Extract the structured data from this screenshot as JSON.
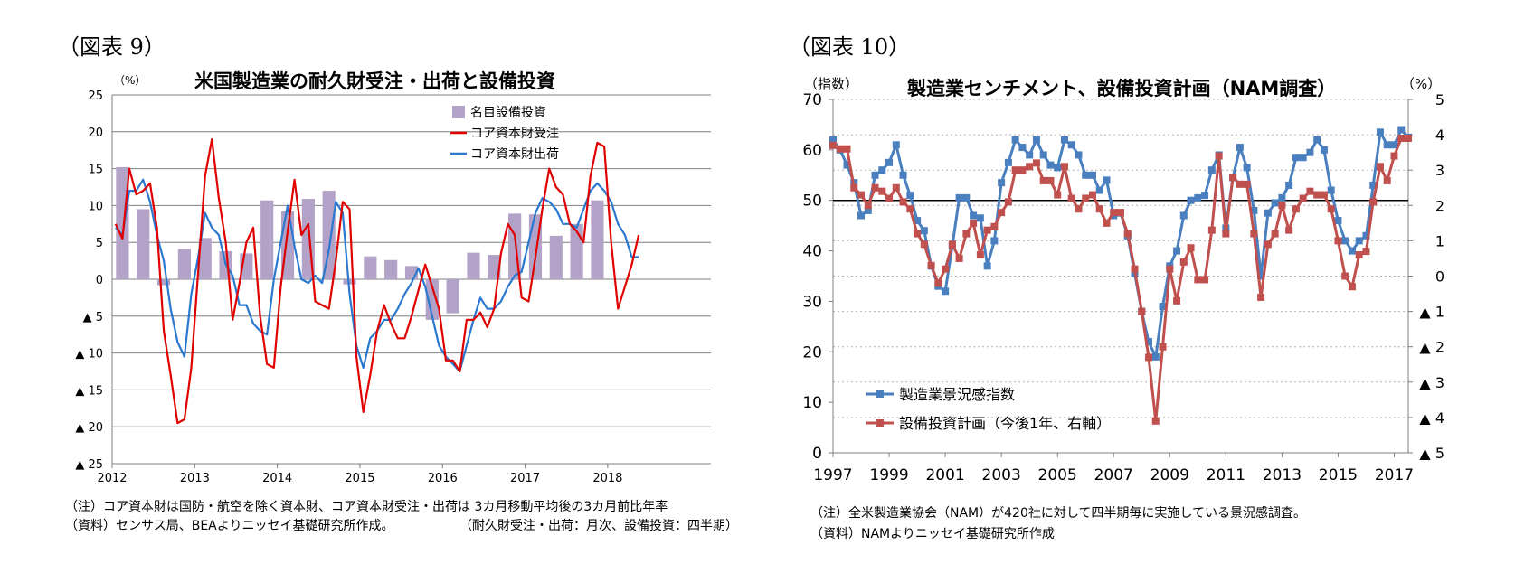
{
  "figure9": {
    "label": "（図表 9）",
    "title": "米国製造業の耐久財受注・出荷と設備投資",
    "note1": "（注）コア資本財は国防・航空を除く資本財、コア資本財受注・出荷は 3カ月移動平均後の3カ月前比年率",
    "note2": "（資料）センサス局、BEAよりニッセイ基礎研究所作成。",
    "note3": "（耐久財受注・出荷：月次、設備投資：四半期）"
  },
  "figure10": {
    "label": "（図表 10）",
    "title": "製造業センチメント、設備投資計画（NAM調査）",
    "note1": "（注）全米製造業協会（NAM）が420社に対して四半期毎に実施している景況感調査。",
    "note2": "（資料）NAMよりニッセイ基礎研究所作成"
  },
  "chart_data": [
    {
      "type": "bar+line",
      "title": "米国製造業の耐久財受注・出荷と設備投資",
      "ylabel": "（%）",
      "ylim": [
        -25,
        25
      ],
      "yticks": [
        25,
        20,
        15,
        10,
        5,
        0,
        -5,
        -10,
        -15,
        -20,
        -25
      ],
      "yticklabels": [
        "25",
        "20",
        "15",
        "10",
        "5",
        "0",
        "▲ 5",
        "▲ 10",
        "▲ 15",
        "▲ 20",
        "▲ 25"
      ],
      "xticklabels": [
        "2012",
        "2013",
        "2014",
        "2015",
        "2016",
        "2017",
        "2018"
      ],
      "x_start": 2012.0,
      "x_end": 2019.25,
      "legend": [
        "名目設備投資",
        "コア資本財受注",
        "コア資本財出荷"
      ],
      "legend_position": "top-right",
      "colors": {
        "bar": "#b3a2c7",
        "orders": "#e00000",
        "shipments": "#2a78d0"
      },
      "quarterly_investment": [
        15.2,
        9.5,
        -0.8,
        4.1,
        5.6,
        3.8,
        3.5,
        10.7,
        9.2,
        10.9,
        12.0,
        -0.7,
        3.1,
        2.6,
        1.8,
        -5.5,
        -4.6,
        3.6,
        3.3,
        8.9,
        8.8,
        5.9,
        7.5,
        10.7
      ],
      "orders_monthly": [
        7.5,
        5.5,
        15.0,
        11.5,
        12.0,
        13.0,
        7.0,
        -7.0,
        -13.0,
        -19.5,
        -19.0,
        -12.0,
        1.0,
        14.0,
        19.0,
        11.0,
        5.0,
        -5.5,
        -0.5,
        5.0,
        7.0,
        -5.0,
        -11.5,
        -12.0,
        -1.0,
        6.5,
        13.5,
        6.0,
        7.5,
        -3.0,
        -3.5,
        -4.0,
        2.5,
        10.5,
        9.5,
        -10.5,
        -18.0,
        -13.0,
        -7.0,
        -3.5,
        -6.0,
        -8.0,
        -8.0,
        -5.0,
        -1.5,
        2.0,
        -1.0,
        -4.0,
        -11.0,
        -11.0,
        -12.5,
        -5.5,
        -5.5,
        -4.5,
        -6.5,
        -4.0,
        3.5,
        7.5,
        6.0,
        -2.5,
        -3.0,
        3.0,
        9.5,
        15.0,
        12.5,
        11.5,
        7.5,
        6.5,
        5.0,
        14.0,
        18.5,
        18.0,
        5.0,
        -4.0,
        -1.0,
        2.0,
        6.0
      ],
      "shipments_monthly": [
        7.0,
        6.0,
        12.0,
        12.0,
        13.5,
        10.5,
        6.0,
        2.5,
        -4.0,
        -8.5,
        -10.5,
        -2.0,
        3.0,
        9.0,
        7.0,
        6.0,
        2.0,
        0.5,
        -3.5,
        -3.5,
        -6.0,
        -7.0,
        -7.5,
        0.0,
        5.0,
        10.0,
        4.5,
        0.0,
        -0.5,
        0.5,
        -0.5,
        4.0,
        10.5,
        9.0,
        -2.0,
        -9.0,
        -12.0,
        -8.0,
        -7.0,
        -5.5,
        -5.5,
        -4.0,
        -2.0,
        -0.5,
        1.5,
        -1.0,
        -5.0,
        -9.0,
        -10.5,
        -11.5,
        -12.5,
        -9.0,
        -5.5,
        -2.5,
        -4.0,
        -4.0,
        -3.0,
        -1.0,
        0.5,
        1.0,
        5.0,
        9.0,
        11.0,
        10.5,
        9.5,
        7.5,
        7.5,
        7.0,
        9.5,
        12.0,
        13.0,
        12.0,
        10.5,
        7.5,
        6.0,
        3.0,
        3.0
      ]
    },
    {
      "type": "line",
      "title": "製造業センチメント、設備投資計画（NAM調査）",
      "ylabel_left": "（指数）",
      "ylabel_right": "（%）",
      "ylim_left": [
        0,
        70
      ],
      "ylim_right": [
        -5,
        5
      ],
      "yticks_left": [
        70,
        60,
        50,
        40,
        30,
        20,
        10,
        0
      ],
      "yticks_right": [
        5,
        4,
        3,
        2,
        1,
        0,
        -1,
        -2,
        -3,
        -4,
        -5
      ],
      "yticklabels_right": [
        "5",
        "4",
        "3",
        "2",
        "1",
        "0",
        "▲ 1",
        "▲ 2",
        "▲ 3",
        "▲ 4",
        "▲ 5"
      ],
      "xticklabels": [
        "1997",
        "1999",
        "2001",
        "2003",
        "2005",
        "2007",
        "2009",
        "2011",
        "2013",
        "2015",
        "2017"
      ],
      "x_start": 1997.0,
      "x_end": 2017.5,
      "reference_line": 50,
      "legend": [
        "製造業景況感指数",
        "設備投資計画（今後1年、右軸）"
      ],
      "legend_position": "bottom-left",
      "colors": {
        "sentiment": "#4a7fbf",
        "capex": "#c0504d"
      },
      "sentiment_index": [
        62,
        60,
        57,
        53.5,
        47,
        48,
        55,
        56,
        57.5,
        61,
        55,
        51,
        46,
        44,
        37,
        33,
        32,
        41,
        50.5,
        50.5,
        47,
        46.5,
        37,
        42,
        53.5,
        57.5,
        62,
        60.5,
        59,
        62,
        59,
        57,
        56.5,
        62,
        61,
        59,
        55,
        55,
        52,
        54,
        47,
        47.5,
        43,
        35.5,
        28,
        22,
        19,
        29,
        37,
        40,
        47,
        50,
        50.5,
        51,
        56,
        59,
        44.5,
        54.5,
        60.5,
        56.5,
        48,
        35,
        47.5,
        49.5,
        50.5,
        53,
        58.5,
        58.5,
        59.5,
        62,
        60,
        52,
        46,
        42,
        40,
        42,
        43,
        53,
        63.5,
        61,
        61,
        64,
        62.5
      ],
      "capex_plan": [
        3.7,
        3.6,
        3.6,
        2.5,
        2.3,
        2.0,
        2.5,
        2.4,
        2.2,
        2.5,
        2.1,
        1.9,
        1.2,
        0.9,
        0.3,
        -0.2,
        0.2,
        0.9,
        0.5,
        1.2,
        1.5,
        0.6,
        1.3,
        1.4,
        1.8,
        2.1,
        3.0,
        3.0,
        3.1,
        3.2,
        2.7,
        2.7,
        2.3,
        3.1,
        2.2,
        1.9,
        2.2,
        2.3,
        1.9,
        1.5,
        1.8,
        1.8,
        1.2,
        0.2,
        -1.0,
        -2.3,
        -4.1,
        -2.0,
        0.2,
        -0.7,
        0.4,
        0.8,
        -0.1,
        -0.1,
        1.3,
        3.4,
        1.2,
        2.8,
        2.6,
        2.6,
        1.2,
        -0.6,
        0.9,
        1.2,
        2.0,
        1.3,
        1.9,
        2.2,
        2.4,
        2.3,
        2.3,
        1.9,
        1.0,
        0.0,
        -0.3,
        0.6,
        0.7,
        2.1,
        3.1,
        2.7,
        3.4,
        3.9,
        3.9
      ]
    }
  ]
}
